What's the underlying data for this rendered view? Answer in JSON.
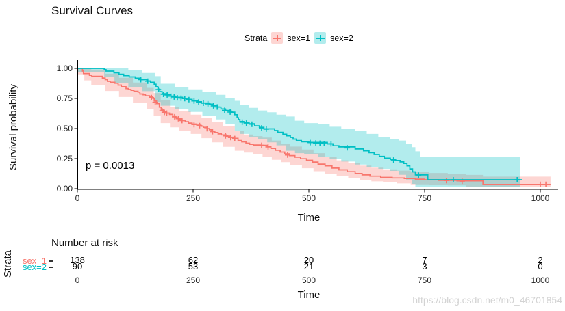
{
  "watermark": {
    "text": "https://blog.csdn.net/m0_46701854"
  },
  "chart_data": {
    "type": "line",
    "subtype": "kaplan-meier-survival-curves",
    "title": "Survival Curves",
    "xlabel": "Time",
    "ylabel": "Survival probability",
    "legend_title": "Strata",
    "legend_position": "top-center",
    "grid": false,
    "pvalue_annotation": "p = 0.0013",
    "xlim": [
      0,
      1038
    ],
    "ylim": [
      0,
      1
    ],
    "xticks": [
      0,
      250,
      500,
      750,
      1000
    ],
    "yticks": [
      1.0,
      0.75,
      0.5,
      0.25,
      0.0
    ],
    "ytick_labels": [
      "1.00",
      "0.75",
      "0.50",
      "0.25",
      "0.00"
    ],
    "axis_color": "#000000",
    "series": [
      {
        "name": "sex=1",
        "color": "#F8766D",
        "band_color": "rgba(248,118,109,0.30)",
        "points": [
          [
            0,
            1
          ],
          [
            11,
            0.978
          ],
          [
            13,
            0.957
          ],
          [
            26,
            0.942
          ],
          [
            31,
            0.934
          ],
          [
            54,
            0.92
          ],
          [
            60,
            0.906
          ],
          [
            65,
            0.892
          ],
          [
            71,
            0.884
          ],
          [
            81,
            0.876
          ],
          [
            88,
            0.861
          ],
          [
            95,
            0.847
          ],
          [
            105,
            0.832
          ],
          [
            110,
            0.824
          ],
          [
            116,
            0.817
          ],
          [
            122,
            0.809
          ],
          [
            131,
            0.802
          ],
          [
            135,
            0.787
          ],
          [
            142,
            0.78
          ],
          [
            147,
            0.772
          ],
          [
            156,
            0.765
          ],
          [
            163,
            0.75
          ],
          [
            166,
            0.728
          ],
          [
            171,
            0.706
          ],
          [
            177,
            0.677
          ],
          [
            181,
            0.655
          ],
          [
            186,
            0.64
          ],
          [
            192,
            0.628
          ],
          [
            199,
            0.617
          ],
          [
            206,
            0.604
          ],
          [
            212,
            0.59
          ],
          [
            219,
            0.578
          ],
          [
            226,
            0.566
          ],
          [
            233,
            0.556
          ],
          [
            240,
            0.545
          ],
          [
            248,
            0.537
          ],
          [
            258,
            0.528
          ],
          [
            267,
            0.519
          ],
          [
            272,
            0.51
          ],
          [
            280,
            0.499
          ],
          [
            285,
            0.489
          ],
          [
            290,
            0.478
          ],
          [
            297,
            0.467
          ],
          [
            304,
            0.455
          ],
          [
            311,
            0.447
          ],
          [
            322,
            0.437
          ],
          [
            330,
            0.428
          ],
          [
            338,
            0.419
          ],
          [
            347,
            0.4
          ],
          [
            355,
            0.389
          ],
          [
            364,
            0.378
          ],
          [
            372,
            0.368
          ],
          [
            380,
            0.363
          ],
          [
            395,
            0.36
          ],
          [
            410,
            0.349
          ],
          [
            418,
            0.334
          ],
          [
            428,
            0.319
          ],
          [
            438,
            0.304
          ],
          [
            448,
            0.289
          ],
          [
            458,
            0.275
          ],
          [
            470,
            0.262
          ],
          [
            482,
            0.249
          ],
          [
            495,
            0.236
          ],
          [
            508,
            0.221
          ],
          [
            520,
            0.204
          ],
          [
            535,
            0.189
          ],
          [
            550,
            0.171
          ],
          [
            565,
            0.156
          ],
          [
            583,
            0.141
          ],
          [
            600,
            0.126
          ],
          [
            615,
            0.114
          ],
          [
            632,
            0.104
          ],
          [
            655,
            0.094
          ],
          [
            680,
            0.089
          ],
          [
            706,
            0.084
          ],
          [
            730,
            0.079
          ],
          [
            750,
            0.074
          ],
          [
            780,
            0.069
          ],
          [
            820,
            0.064
          ],
          [
            876,
            0.035
          ],
          [
            1022,
            0.035
          ]
        ],
        "censors": [
          [
            160,
            0.757
          ],
          [
            168,
            0.717
          ],
          [
            183,
            0.648
          ],
          [
            188,
            0.634
          ],
          [
            193,
            0.627
          ],
          [
            210,
            0.597
          ],
          [
            218,
            0.581
          ],
          [
            226,
            0.566
          ],
          [
            252,
            0.533
          ],
          [
            264,
            0.524
          ],
          [
            280,
            0.499
          ],
          [
            292,
            0.474
          ],
          [
            320,
            0.439
          ],
          [
            331,
            0.425
          ],
          [
            340,
            0.417
          ],
          [
            398,
            0.36
          ],
          [
            412,
            0.347
          ],
          [
            454,
            0.28
          ],
          [
            797,
            0.067
          ],
          [
            831,
            0.062
          ],
          [
            1000,
            0.035
          ],
          [
            1012,
            0.035
          ]
        ],
        "band": [
          [
            0,
            1,
            1
          ],
          [
            15,
            1,
            0.95
          ],
          [
            30,
            0.99,
            0.9
          ],
          [
            60,
            0.955,
            0.862
          ],
          [
            90,
            0.922,
            0.812
          ],
          [
            120,
            0.882,
            0.762
          ],
          [
            150,
            0.838,
            0.712
          ],
          [
            165,
            0.795,
            0.662
          ],
          [
            180,
            0.738,
            0.602
          ],
          [
            200,
            0.678,
            0.545
          ],
          [
            220,
            0.645,
            0.51
          ],
          [
            245,
            0.615,
            0.48
          ],
          [
            268,
            0.59,
            0.455
          ],
          [
            290,
            0.555,
            0.42
          ],
          [
            315,
            0.52,
            0.385
          ],
          [
            340,
            0.48,
            0.348
          ],
          [
            360,
            0.45,
            0.315
          ],
          [
            380,
            0.437,
            0.3
          ],
          [
            400,
            0.425,
            0.29
          ],
          [
            420,
            0.4,
            0.265
          ],
          [
            440,
            0.375,
            0.24
          ],
          [
            460,
            0.35,
            0.22
          ],
          [
            485,
            0.325,
            0.195
          ],
          [
            510,
            0.295,
            0.17
          ],
          [
            535,
            0.265,
            0.145
          ],
          [
            560,
            0.235,
            0.122
          ],
          [
            585,
            0.215,
            0.102
          ],
          [
            610,
            0.192,
            0.086
          ],
          [
            635,
            0.175,
            0.072
          ],
          [
            660,
            0.16,
            0.06
          ],
          [
            690,
            0.15,
            0.051
          ],
          [
            720,
            0.14,
            0.043
          ],
          [
            760,
            0.13,
            0.036
          ],
          [
            800,
            0.12,
            0.03
          ],
          [
            840,
            0.114,
            0.027
          ],
          [
            876,
            0.1,
            0.012
          ],
          [
            1022,
            0.1,
            0.012
          ]
        ]
      },
      {
        "name": "sex=2",
        "color": "#00BFC4",
        "band_color": "rgba(0,191,196,0.30)",
        "points": [
          [
            0,
            1
          ],
          [
            58,
            0.989
          ],
          [
            62,
            0.977
          ],
          [
            79,
            0.963
          ],
          [
            90,
            0.951
          ],
          [
            100,
            0.94
          ],
          [
            112,
            0.929
          ],
          [
            125,
            0.918
          ],
          [
            137,
            0.906
          ],
          [
            150,
            0.895
          ],
          [
            158,
            0.884
          ],
          [
            166,
            0.868
          ],
          [
            170,
            0.848
          ],
          [
            174,
            0.827
          ],
          [
            178,
            0.806
          ],
          [
            183,
            0.789
          ],
          [
            194,
            0.779
          ],
          [
            202,
            0.769
          ],
          [
            212,
            0.759
          ],
          [
            227,
            0.751
          ],
          [
            240,
            0.742
          ],
          [
            248,
            0.732
          ],
          [
            260,
            0.722
          ],
          [
            268,
            0.712
          ],
          [
            285,
            0.702
          ],
          [
            293,
            0.69
          ],
          [
            303,
            0.678
          ],
          [
            310,
            0.663
          ],
          [
            320,
            0.65
          ],
          [
            332,
            0.636
          ],
          [
            340,
            0.615
          ],
          [
            345,
            0.59
          ],
          [
            348,
            0.574
          ],
          [
            351,
            0.558
          ],
          [
            361,
            0.548
          ],
          [
            371,
            0.539
          ],
          [
            383,
            0.522
          ],
          [
            393,
            0.51
          ],
          [
            403,
            0.497
          ],
          [
            426,
            0.483
          ],
          [
            433,
            0.468
          ],
          [
            444,
            0.452
          ],
          [
            452,
            0.44
          ],
          [
            460,
            0.426
          ],
          [
            466,
            0.412
          ],
          [
            473,
            0.4
          ],
          [
            484,
            0.39
          ],
          [
            500,
            0.384
          ],
          [
            540,
            0.372
          ],
          [
            552,
            0.357
          ],
          [
            565,
            0.347
          ],
          [
            600,
            0.33
          ],
          [
            618,
            0.314
          ],
          [
            630,
            0.299
          ],
          [
            641,
            0.284
          ],
          [
            652,
            0.269
          ],
          [
            663,
            0.254
          ],
          [
            676,
            0.244
          ],
          [
            687,
            0.234
          ],
          [
            697,
            0.222
          ],
          [
            705,
            0.209
          ],
          [
            712,
            0.189
          ],
          [
            718,
            0.164
          ],
          [
            724,
            0.139
          ],
          [
            730,
            0.114
          ],
          [
            757,
            0.074
          ],
          [
            960,
            0.074
          ]
        ],
        "censors": [
          [
            137,
            0.906
          ],
          [
            152,
            0.893
          ],
          [
            175,
            0.824
          ],
          [
            186,
            0.784
          ],
          [
            194,
            0.779
          ],
          [
            202,
            0.769
          ],
          [
            209,
            0.762
          ],
          [
            216,
            0.755
          ],
          [
            224,
            0.752
          ],
          [
            232,
            0.749
          ],
          [
            241,
            0.74
          ],
          [
            252,
            0.729
          ],
          [
            262,
            0.72
          ],
          [
            272,
            0.71
          ],
          [
            282,
            0.705
          ],
          [
            294,
            0.688
          ],
          [
            302,
            0.679
          ],
          [
            318,
            0.651
          ],
          [
            330,
            0.637
          ],
          [
            356,
            0.552
          ],
          [
            365,
            0.545
          ],
          [
            377,
            0.536
          ],
          [
            398,
            0.505
          ],
          [
            408,
            0.495
          ],
          [
            503,
            0.383
          ],
          [
            515,
            0.379
          ],
          [
            524,
            0.377
          ],
          [
            533,
            0.375
          ],
          [
            548,
            0.373
          ],
          [
            583,
            0.339
          ],
          [
            683,
            0.238
          ],
          [
            737,
            0.112
          ],
          [
            812,
            0.074
          ],
          [
            950,
            0.074
          ]
        ],
        "band": [
          [
            0,
            1,
            1
          ],
          [
            58,
            1,
            0.968
          ],
          [
            80,
            1,
            0.928
          ],
          [
            110,
            0.985,
            0.878
          ],
          [
            140,
            0.962,
            0.845
          ],
          [
            168,
            0.935,
            0.81
          ],
          [
            180,
            0.872,
            0.72
          ],
          [
            210,
            0.845,
            0.69
          ],
          [
            240,
            0.825,
            0.665
          ],
          [
            270,
            0.805,
            0.638
          ],
          [
            300,
            0.78,
            0.603
          ],
          [
            320,
            0.755,
            0.575
          ],
          [
            340,
            0.73,
            0.535
          ],
          [
            352,
            0.695,
            0.478
          ],
          [
            370,
            0.672,
            0.455
          ],
          [
            390,
            0.65,
            0.43
          ],
          [
            410,
            0.635,
            0.41
          ],
          [
            430,
            0.615,
            0.385
          ],
          [
            450,
            0.6,
            0.36
          ],
          [
            470,
            0.565,
            0.315
          ],
          [
            490,
            0.545,
            0.295
          ],
          [
            520,
            0.535,
            0.285
          ],
          [
            545,
            0.515,
            0.262
          ],
          [
            570,
            0.5,
            0.245
          ],
          [
            600,
            0.48,
            0.225
          ],
          [
            625,
            0.455,
            0.2
          ],
          [
            650,
            0.432,
            0.18
          ],
          [
            675,
            0.415,
            0.165
          ],
          [
            695,
            0.4,
            0.148
          ],
          [
            710,
            0.375,
            0.115
          ],
          [
            722,
            0.345,
            0.075
          ],
          [
            730,
            0.31,
            0.04
          ],
          [
            740,
            0.262,
            0.012
          ],
          [
            957,
            0.262,
            0.012
          ]
        ]
      }
    ],
    "risk_table": {
      "title": "Number at risk",
      "ylabel": "Strata",
      "xlabel": "Time",
      "times": [
        0,
        250,
        500,
        750,
        1000
      ],
      "rows": [
        {
          "name": "sex=1",
          "color": "#F8766D",
          "values": [
            "138",
            "62",
            "20",
            "7",
            "2"
          ]
        },
        {
          "name": "sex=2",
          "color": "#00BFC4",
          "values": [
            "90",
            "53",
            "21",
            "3",
            "0"
          ]
        }
      ]
    }
  }
}
